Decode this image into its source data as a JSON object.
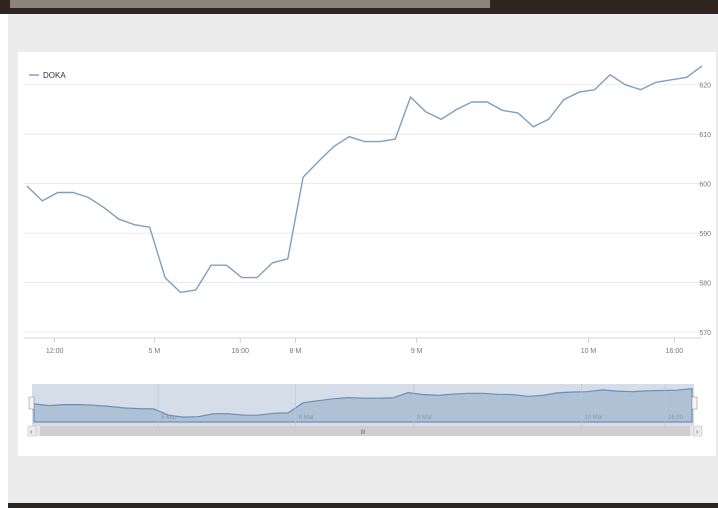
{
  "chart_data": {
    "type": "line",
    "series": [
      {
        "name": "DOKA",
        "color": "#7f9fbf",
        "values": [
          599.5,
          596.5,
          598.2,
          598.2,
          597.2,
          595.2,
          592.8,
          591.7,
          591.2,
          581,
          578,
          578.5,
          583.5,
          583.5,
          581,
          581,
          584,
          584.8,
          601.3,
          604.5,
          607.5,
          609.5,
          608.5,
          608.5,
          609,
          617.5,
          614.5,
          613,
          615,
          616.5,
          616.5,
          614.8,
          614.3,
          611.5,
          613,
          617,
          618.5,
          619,
          622,
          620,
          619,
          620.5,
          621,
          621.5,
          623.8
        ]
      }
    ],
    "ylim": [
      570,
      625
    ],
    "yticks": [
      570,
      580,
      590,
      600,
      610,
      620
    ],
    "xticks": [
      {
        "label": "12:00",
        "index": 1.8
      },
      {
        "label": "5 M",
        "index": 8.3
      },
      {
        "label": "16:00",
        "index": 13.9
      },
      {
        "label": "8 M",
        "index": 17.5
      },
      {
        "label": "9 M",
        "index": 25.4
      },
      {
        "label": "10 M",
        "index": 36.6
      },
      {
        "label": "16:00",
        "index": 42.2
      }
    ],
    "navigator": {
      "labels": [
        {
          "label": "5 Mar",
          "index": 8.3
        },
        {
          "label": "8 Mar",
          "index": 17.5
        },
        {
          "label": "9 Mar",
          "index": 25.4
        },
        {
          "label": "10 Mar",
          "index": 36.6
        },
        {
          "label": "16:00",
          "index": 42.2
        }
      ],
      "scroll_grip": "III"
    },
    "grid": true,
    "legend_position": "top-left"
  }
}
